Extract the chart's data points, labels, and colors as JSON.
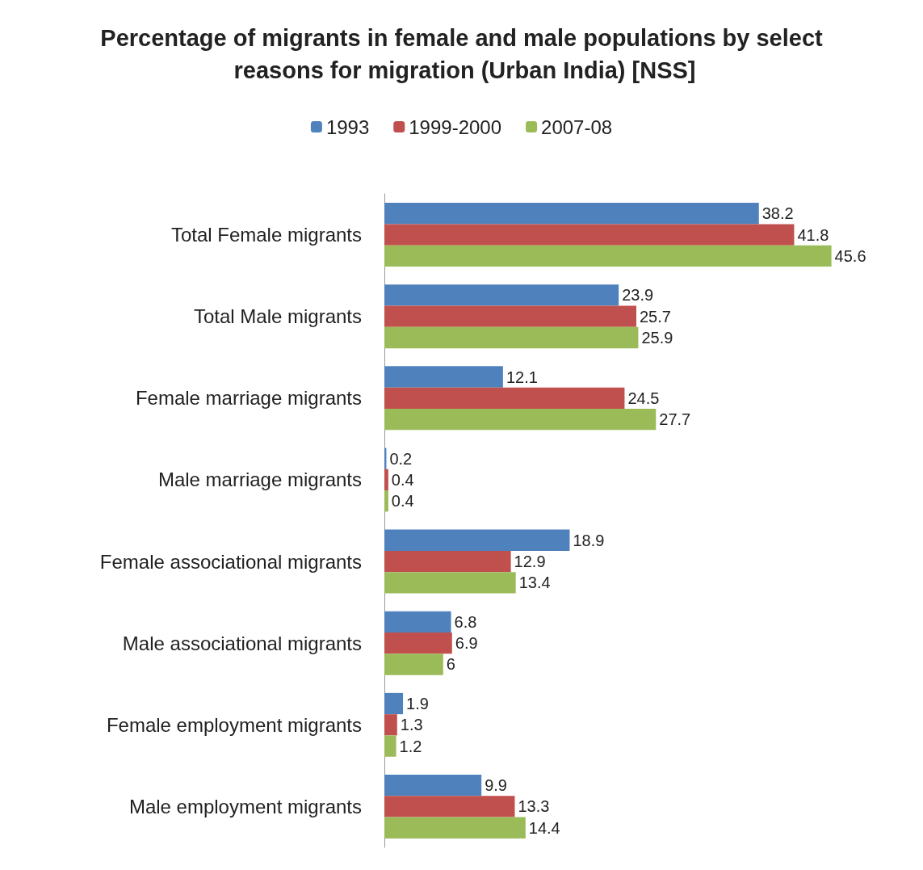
{
  "chart_data": {
    "type": "bar",
    "orientation": "horizontal",
    "title": "Percentage of migrants in female and male populations by select reasons for migration (Urban India) [NSS]",
    "categories": [
      "Total Female migrants",
      "Total Male migrants",
      "Female marriage migrants",
      "Male marriage migrants",
      "Female associational migrants",
      "Male associational migrants",
      "Female employment migrants",
      "Male employment migrants"
    ],
    "series": [
      {
        "name": "1993",
        "color": "#4f81bd",
        "values": [
          38.2,
          23.9,
          12.1,
          0.2,
          18.9,
          6.8,
          1.9,
          9.9
        ]
      },
      {
        "name": "1999-2000",
        "color": "#c0504d",
        "values": [
          41.8,
          25.7,
          24.5,
          0.4,
          12.9,
          6.9,
          1.3,
          13.3
        ]
      },
      {
        "name": "2007-08",
        "color": "#9bbb59",
        "values": [
          45.6,
          25.9,
          27.7,
          0.4,
          13.4,
          6,
          1.2,
          14.4
        ]
      }
    ],
    "data_labels": true,
    "legend": "top",
    "grid": false,
    "tick_labels": "y"
  }
}
